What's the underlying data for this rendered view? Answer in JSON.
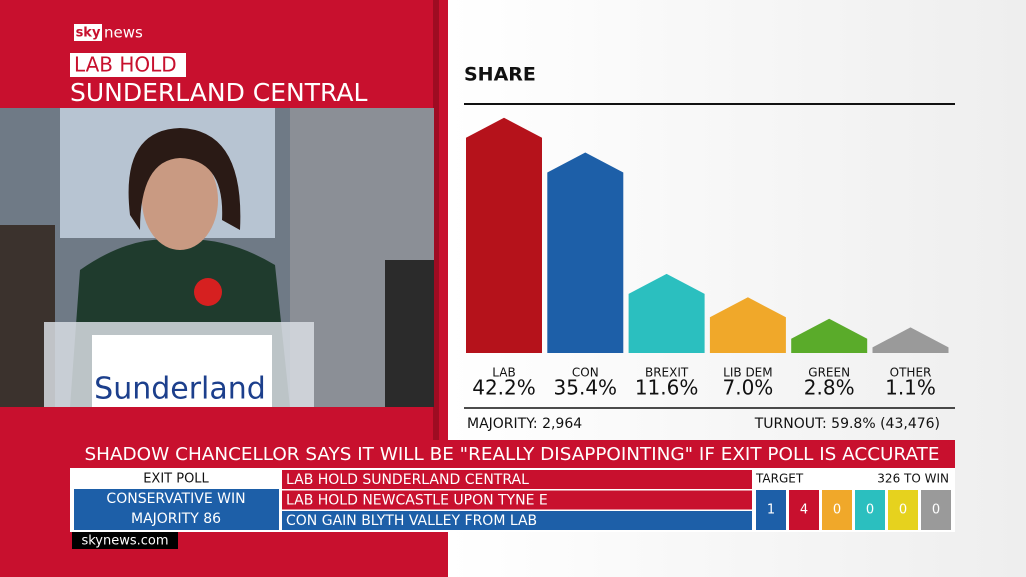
{
  "header": {
    "logo": {
      "sky": "sky",
      "news": "news"
    },
    "result": "LAB HOLD",
    "seat": "SUNDERLAND CENTRAL"
  },
  "photo": {
    "lectern_text": "Sunderland"
  },
  "chart_data": {
    "type": "bar",
    "title": "SHARE",
    "categories": [
      "LAB",
      "CON",
      "BREXIT",
      "LIB DEM",
      "GREEN",
      "OTHER"
    ],
    "values": [
      42.2,
      35.4,
      11.6,
      7.0,
      2.8,
      1.1
    ],
    "value_labels": [
      "42.2%",
      "35.4%",
      "11.6%",
      "7.0%",
      "2.8%",
      "1.1%"
    ],
    "colors": [
      "#b5121b",
      "#1d5fa8",
      "#2bbfbf",
      "#f0a82a",
      "#5aab2a",
      "#9a9a9a"
    ]
  },
  "footer_stats": {
    "majority": "MAJORITY: 2,964",
    "turnout": "TURNOUT: 59.8% (43,476)"
  },
  "ticker": "SHADOW CHANCELLOR SAYS IT WILL BE \"REALLY DISAPPOINTING\" IF EXIT POLL IS ACCURATE",
  "exit_poll": {
    "label": "EXIT POLL",
    "line1": "CONSERVATIVE WIN",
    "line2": "MAJORITY 86"
  },
  "results": [
    "LAB HOLD SUNDERLAND CENTRAL",
    "LAB HOLD NEWCASTLE UPON TYNE E",
    "CON GAIN BLYTH VALLEY FROM LAB"
  ],
  "target": {
    "label": "TARGET",
    "to_win": "326 TO WIN",
    "values": [
      "1",
      "4",
      "0",
      "0",
      "0",
      "0"
    ]
  },
  "website": "skynews.com"
}
